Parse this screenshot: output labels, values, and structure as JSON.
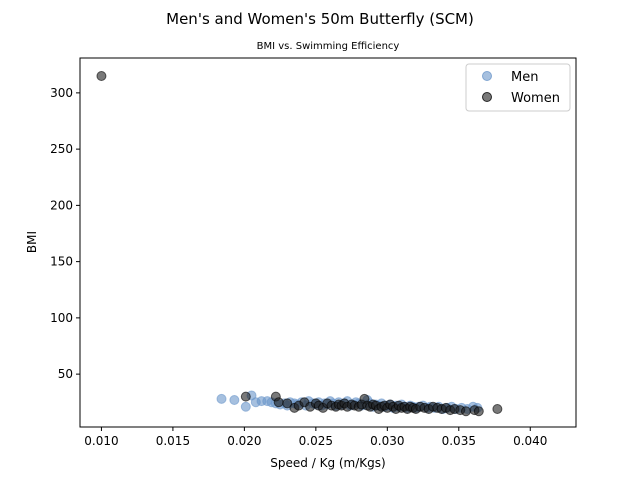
{
  "chart_data": {
    "type": "scatter",
    "title": "Men's and Women's 50m Butterfly (SCM)",
    "subtitle": "BMI vs. Swimming Efficiency",
    "xlabel": "Speed / Kg (m/Kgs)",
    "ylabel": "BMI",
    "xlim": [
      0.0085,
      0.0432
    ],
    "ylim": [
      3,
      331
    ],
    "xticks": [
      "0.010",
      "0.015",
      "0.020",
      "0.025",
      "0.030",
      "0.035",
      "0.040"
    ],
    "yticks": [
      "50",
      "100",
      "150",
      "200",
      "250",
      "300"
    ],
    "grid": false,
    "legend_position": "top-right",
    "series": [
      {
        "name": "Men",
        "color": "#6b96c9",
        "points": [
          [
            0.0184,
            28
          ],
          [
            0.0193,
            27
          ],
          [
            0.0201,
            21
          ],
          [
            0.0205,
            31
          ],
          [
            0.0208,
            25
          ],
          [
            0.0212,
            26
          ],
          [
            0.0216,
            26
          ],
          [
            0.0219,
            25
          ],
          [
            0.0222,
            24
          ],
          [
            0.0225,
            23
          ],
          [
            0.0228,
            24
          ],
          [
            0.023,
            22
          ],
          [
            0.0232,
            25
          ],
          [
            0.0235,
            24
          ],
          [
            0.0237,
            23
          ],
          [
            0.024,
            25
          ],
          [
            0.0243,
            22
          ],
          [
            0.0245,
            26
          ],
          [
            0.0248,
            24
          ],
          [
            0.025,
            23
          ],
          [
            0.0252,
            25
          ],
          [
            0.0254,
            22
          ],
          [
            0.0256,
            24
          ],
          [
            0.0258,
            23
          ],
          [
            0.026,
            26
          ],
          [
            0.0262,
            24
          ],
          [
            0.0264,
            22
          ],
          [
            0.0266,
            25
          ],
          [
            0.0268,
            23
          ],
          [
            0.027,
            24
          ],
          [
            0.0272,
            26
          ],
          [
            0.0274,
            22
          ],
          [
            0.0276,
            23
          ],
          [
            0.0278,
            25
          ],
          [
            0.028,
            24
          ],
          [
            0.0282,
            22
          ],
          [
            0.0284,
            23
          ],
          [
            0.0286,
            27
          ],
          [
            0.0288,
            24
          ],
          [
            0.029,
            21
          ],
          [
            0.0292,
            23
          ],
          [
            0.0294,
            22
          ],
          [
            0.0296,
            24
          ],
          [
            0.0298,
            21
          ],
          [
            0.03,
            22
          ],
          [
            0.0302,
            23
          ],
          [
            0.0304,
            20
          ],
          [
            0.0306,
            22
          ],
          [
            0.0308,
            21
          ],
          [
            0.031,
            23
          ],
          [
            0.0312,
            21
          ],
          [
            0.0314,
            20
          ],
          [
            0.0316,
            22
          ],
          [
            0.0318,
            21
          ],
          [
            0.032,
            20
          ],
          [
            0.0322,
            21
          ],
          [
            0.0325,
            22
          ],
          [
            0.0328,
            20
          ],
          [
            0.033,
            21
          ],
          [
            0.0333,
            20
          ],
          [
            0.0336,
            21
          ],
          [
            0.0339,
            19
          ],
          [
            0.0342,
            20
          ],
          [
            0.0345,
            21
          ],
          [
            0.0348,
            19
          ],
          [
            0.0352,
            20
          ],
          [
            0.0356,
            19
          ],
          [
            0.036,
            21
          ],
          [
            0.0363,
            20
          ]
        ]
      },
      {
        "name": "Women",
        "color": "#202020",
        "points": [
          [
            0.01,
            315
          ],
          [
            0.0201,
            30
          ],
          [
            0.0222,
            30
          ],
          [
            0.0224,
            25
          ],
          [
            0.023,
            24
          ],
          [
            0.0235,
            20
          ],
          [
            0.0238,
            22
          ],
          [
            0.0242,
            25
          ],
          [
            0.0246,
            21
          ],
          [
            0.025,
            24
          ],
          [
            0.0252,
            22
          ],
          [
            0.0255,
            20
          ],
          [
            0.0258,
            24
          ],
          [
            0.0261,
            22
          ],
          [
            0.0264,
            21
          ],
          [
            0.0266,
            23
          ],
          [
            0.0268,
            22
          ],
          [
            0.027,
            24
          ],
          [
            0.0272,
            21
          ],
          [
            0.0275,
            23
          ],
          [
            0.0277,
            22
          ],
          [
            0.028,
            21
          ],
          [
            0.0282,
            23
          ],
          [
            0.0284,
            28
          ],
          [
            0.0286,
            22
          ],
          [
            0.0288,
            21
          ],
          [
            0.029,
            23
          ],
          [
            0.0292,
            22
          ],
          [
            0.0294,
            19
          ],
          [
            0.0296,
            21
          ],
          [
            0.0298,
            22
          ],
          [
            0.03,
            20
          ],
          [
            0.0302,
            23
          ],
          [
            0.0304,
            21
          ],
          [
            0.0306,
            19
          ],
          [
            0.0308,
            22
          ],
          [
            0.031,
            20
          ],
          [
            0.0312,
            21
          ],
          [
            0.0314,
            19
          ],
          [
            0.0316,
            21
          ],
          [
            0.0318,
            20
          ],
          [
            0.032,
            19
          ],
          [
            0.0323,
            21
          ],
          [
            0.0326,
            20
          ],
          [
            0.0329,
            19
          ],
          [
            0.0332,
            21
          ],
          [
            0.0335,
            20
          ],
          [
            0.0338,
            19
          ],
          [
            0.0341,
            20
          ],
          [
            0.0344,
            18
          ],
          [
            0.0347,
            19
          ],
          [
            0.0351,
            18
          ],
          [
            0.0355,
            17
          ],
          [
            0.0361,
            18
          ],
          [
            0.0364,
            17
          ],
          [
            0.0377,
            19
          ]
        ]
      }
    ]
  }
}
